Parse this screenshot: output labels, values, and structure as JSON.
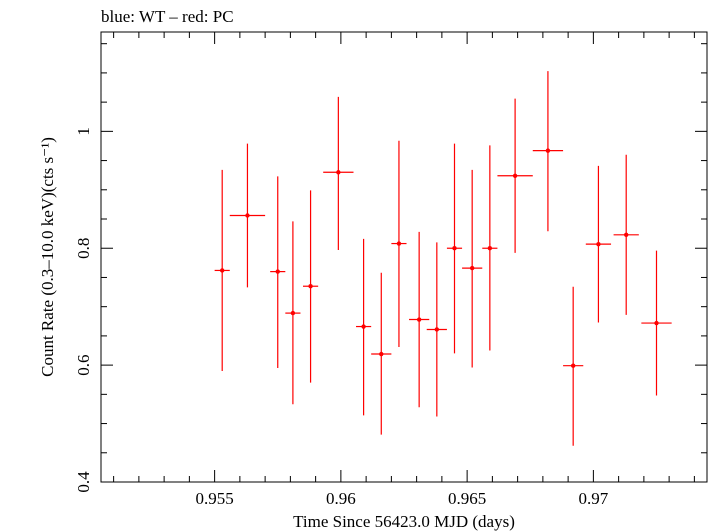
{
  "chart_data": {
    "type": "scatter",
    "title": "blue: WT – red: PC",
    "xlabel": "Time Since 56423.0 MJD (days)",
    "ylabel": "Count Rate (0.3–10.0 keV)(cts s⁻¹)",
    "xlim": [
      0.9505,
      0.9745
    ],
    "ylim": [
      0.4,
      1.17
    ],
    "xticks": [
      0.955,
      0.96,
      0.965,
      0.97
    ],
    "xtick_labels": [
      "0.955",
      "0.96",
      "0.965",
      "0.97"
    ],
    "yticks": [
      0.4,
      0.6,
      0.8,
      1.0
    ],
    "ytick_labels": [
      "0.4",
      "0.6",
      "0.8",
      "1"
    ],
    "grid": false,
    "series": [
      {
        "color": "#ff0000",
        "points": [
          {
            "x": 0.9553,
            "y": 0.762,
            "xerr": 0.0003,
            "ylo": 0.59,
            "yhi": 0.934
          },
          {
            "x": 0.9563,
            "y": 0.856,
            "xerr": 0.0007,
            "ylo": 0.733,
            "yhi": 0.979
          },
          {
            "x": 0.9575,
            "y": 0.76,
            "xerr": 0.0003,
            "ylo": 0.595,
            "yhi": 0.923
          },
          {
            "x": 0.9581,
            "y": 0.689,
            "xerr": 0.0003,
            "ylo": 0.533,
            "yhi": 0.846
          },
          {
            "x": 0.9588,
            "y": 0.735,
            "xerr": 0.0003,
            "ylo": 0.57,
            "yhi": 0.899
          },
          {
            "x": 0.9599,
            "y": 0.93,
            "xerr": 0.0006,
            "ylo": 0.797,
            "yhi": 1.059
          },
          {
            "x": 0.9609,
            "y": 0.666,
            "xerr": 0.0003,
            "ylo": 0.514,
            "yhi": 0.816
          },
          {
            "x": 0.9616,
            "y": 0.619,
            "xerr": 0.0004,
            "ylo": 0.481,
            "yhi": 0.758
          },
          {
            "x": 0.9623,
            "y": 0.808,
            "xerr": 0.0003,
            "ylo": 0.631,
            "yhi": 0.984
          },
          {
            "x": 0.9631,
            "y": 0.678,
            "xerr": 0.0004,
            "ylo": 0.528,
            "yhi": 0.828
          },
          {
            "x": 0.9638,
            "y": 0.661,
            "xerr": 0.0004,
            "ylo": 0.512,
            "yhi": 0.81
          },
          {
            "x": 0.9645,
            "y": 0.8,
            "xerr": 0.0003,
            "ylo": 0.62,
            "yhi": 0.979
          },
          {
            "x": 0.9652,
            "y": 0.766,
            "xerr": 0.0004,
            "ylo": 0.596,
            "yhi": 0.934
          },
          {
            "x": 0.9659,
            "y": 0.8,
            "xerr": 0.0003,
            "ylo": 0.625,
            "yhi": 0.976
          },
          {
            "x": 0.9669,
            "y": 0.924,
            "xerr": 0.0007,
            "ylo": 0.792,
            "yhi": 1.056
          },
          {
            "x": 0.9682,
            "y": 0.967,
            "xerr": 0.0006,
            "ylo": 0.829,
            "yhi": 1.103
          },
          {
            "x": 0.9692,
            "y": 0.599,
            "xerr": 0.0004,
            "ylo": 0.462,
            "yhi": 0.734
          },
          {
            "x": 0.9702,
            "y": 0.807,
            "xerr": 0.0005,
            "ylo": 0.673,
            "yhi": 0.941
          },
          {
            "x": 0.9713,
            "y": 0.823,
            "xerr": 0.0005,
            "ylo": 0.686,
            "yhi": 0.96
          },
          {
            "x": 0.9725,
            "y": 0.672,
            "xerr": 0.0006,
            "ylo": 0.548,
            "yhi": 0.796
          }
        ]
      }
    ]
  }
}
